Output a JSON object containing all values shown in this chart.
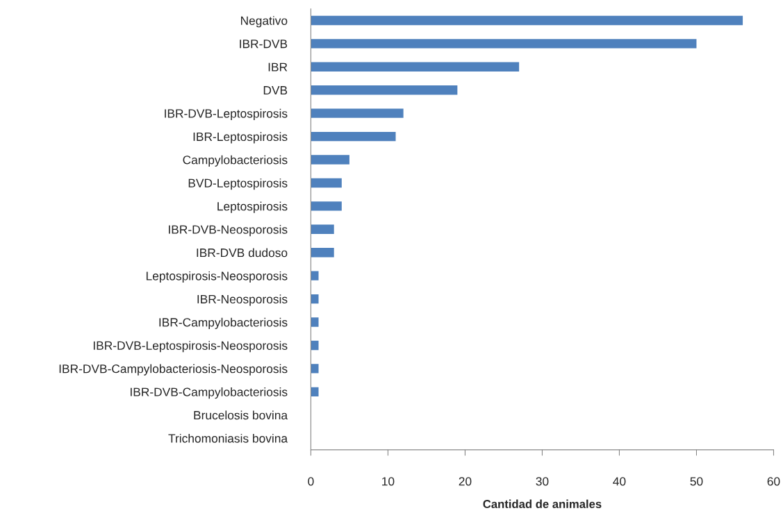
{
  "chart_data": {
    "type": "bar",
    "orientation": "horizontal",
    "categories": [
      "Negativo",
      "IBR-DVB",
      "IBR",
      "DVB",
      "IBR-DVB-Leptospirosis",
      "IBR-Leptospirosis",
      "Campylobacteriosis",
      "BVD-Leptospirosis",
      "Leptospirosis",
      "IBR-DVB-Neosporosis",
      "IBR-DVB dudoso",
      "Leptospirosis-Neosporosis",
      "IBR-Neosporosis",
      "IBR-Campylobacteriosis",
      "IBR-DVB-Leptospirosis-Neosporosis",
      "IBR-DVB-Campylobacteriosis-Neosporosis",
      "IBR-DVB-Campylobacteriosis",
      "Brucelosis bovina",
      "Trichomoniasis bovina"
    ],
    "values": [
      56,
      50,
      27,
      19,
      12,
      11,
      5,
      4,
      4,
      3,
      3,
      1,
      1,
      1,
      1,
      1,
      1,
      0,
      0
    ],
    "color": "#4f81bd",
    "xlabel": "Cantidad de animales",
    "xlim": [
      0,
      60
    ],
    "xticks": [
      0,
      10,
      20,
      30,
      40,
      50,
      60
    ],
    "grid": false,
    "legend": false
  }
}
